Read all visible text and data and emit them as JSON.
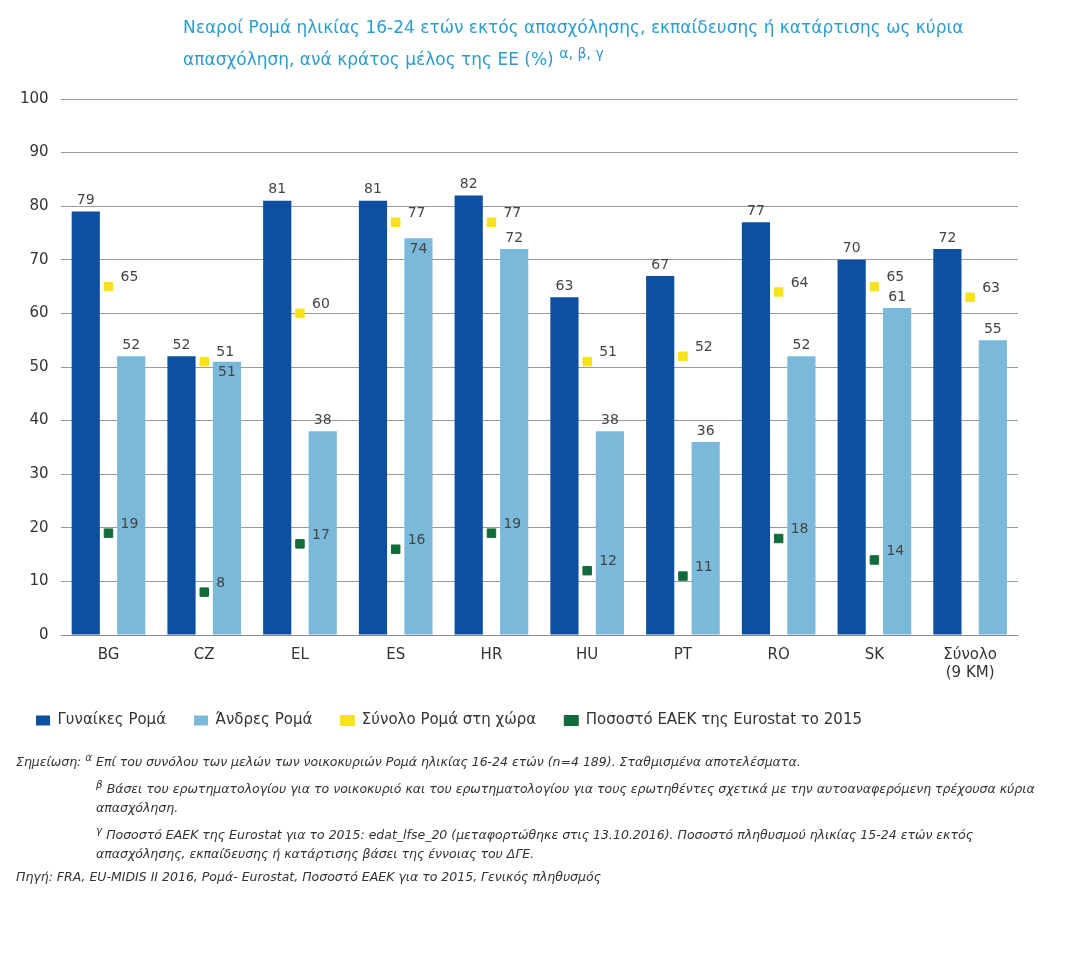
{
  "chart_data": {
    "type": "bar",
    "title": "Νεαροί Ρομά ηλικίας 16-24 ετών εκτός απασχόλησης, εκπαίδευσης ή κατάρτισης ως κύρια απασχόληση, ανά κράτος μέλος της ΕΕ (%) $^{α, β, γ}$",
    "categories": [
      "BG",
      "CZ",
      "EL",
      "ES",
      "HR",
      "HU",
      "PT",
      "RO",
      "SK",
      "Σύνολο (9 KM)"
    ],
    "series": [
      {
        "name": "Γυναίκες Ρομά",
        "color": "#0d4fa0",
        "values": [
          79,
          52,
          81,
          81,
          82,
          63,
          67,
          77,
          70,
          72
        ]
      },
      {
        "name": "Άνδρες Ρομά",
        "color": "#7bb9db",
        "values": [
          52,
          51,
          38,
          74,
          72,
          38,
          36,
          52,
          61,
          55
        ]
      },
      {
        "name": "Σύνολο Ρομά στη χώρα",
        "type": "scatter",
        "color": "#f7e21b",
        "values": [
          65,
          51,
          60,
          77,
          77,
          51,
          52,
          64,
          65,
          63
        ]
      },
      {
        "name": "Ποσοστό ΕΑΕΚ της Eurostat το 2015",
        "type": "scatter",
        "color": "#136b3c",
        "values": [
          19,
          8,
          17,
          16,
          19,
          12,
          11,
          18,
          14,
          null
        ]
      }
    ],
    "ylim": [
      0,
      100
    ],
    "yticks": [
      0,
      10,
      20,
      30,
      40,
      50,
      60,
      70,
      80,
      90,
      100
    ],
    "grid": "y",
    "marker": "square",
    "legend": "bottom",
    "data_labels": true,
    "annotations": [
      "Σημείωση: $^{α}$ Επί του συνόλου των μελών των νοικοκυριών Ρομά ηλικίας 16-24 ετών (n=4 189). Σταθμισμένα αποτελέσματα.",
      "$^{β}$ Βάσει του ερωτηματολογίου για το νοικοκυριό και του ερωτηματολογίου για τους ερωτηθέντες σχετικά με την αυτοαναφερόμενη τρέχουσα κύρια απασχόληση.",
      "$^{γ}$ Ποσοστό ΕΑΕΚ της Eurostat για το 2015: edat_lfse_20 (μεταφορτώθηκε στις 13.10.2016). Ποσοστό πληθυσμού ηλικίας 15-24 ετών εκτός απασχόλησης, εκπαίδευσης ή κατάρτισης βάσει της έννοιας του ΔΓΕ.",
      "Πηγή: FRA, EU-MIDIS II 2016, Ρομά- Eurostat, Ποσοστό ΕΑΕΚ για το 2015, Γενικός πληθυσμός"
    ]
  }
}
